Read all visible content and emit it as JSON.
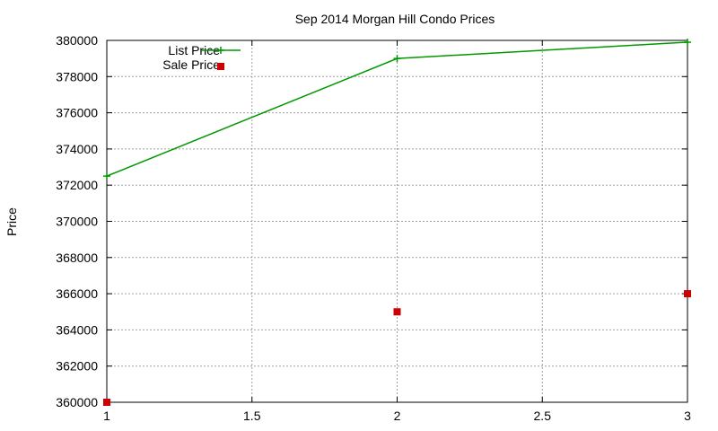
{
  "chart_data": {
    "type": "line",
    "title": "Sep 2014 Morgan Hill Condo Prices",
    "xlabel": "",
    "ylabel": "Price",
    "xlim": [
      1,
      3
    ],
    "ylim": [
      360000,
      380000
    ],
    "x_ticks": [
      1,
      1.5,
      2,
      2.5,
      3
    ],
    "x_tick_labels": [
      "1",
      "1.5",
      "2",
      "2.5",
      "3"
    ],
    "y_ticks": [
      360000,
      362000,
      364000,
      366000,
      368000,
      370000,
      372000,
      374000,
      376000,
      378000,
      380000
    ],
    "y_tick_labels": [
      "360000",
      "362000",
      "364000",
      "366000",
      "368000",
      "370000",
      "372000",
      "374000",
      "376000",
      "378000",
      "380000"
    ],
    "grid": true,
    "legend_position": "top-left",
    "series": [
      {
        "name": "List Price",
        "style": "linespoints",
        "marker": "plus",
        "color": "#009900",
        "x": [
          1,
          2,
          3
        ],
        "y": [
          372500,
          379000,
          379900
        ]
      },
      {
        "name": "Sale Price",
        "style": "points",
        "marker": "square",
        "color": "#cc0000",
        "x": [
          1,
          2,
          3
        ],
        "y": [
          360000,
          365000,
          366000
        ]
      }
    ]
  }
}
